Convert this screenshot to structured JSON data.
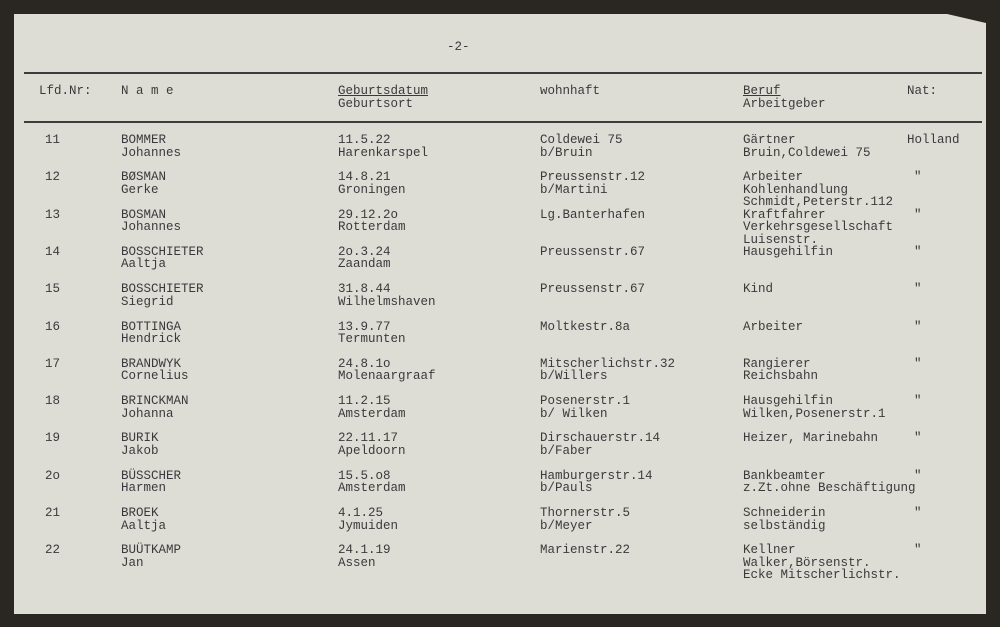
{
  "page_number": "-2-",
  "headers": {
    "nr": "Lfd.Nr:",
    "name": "N a m e",
    "birth_date": "Geburtsdatum",
    "birth_place": "Geburtsort",
    "residence": "wohnhaft",
    "occupation": "Beruf",
    "employer": "Arbeitgeber",
    "nationality": "Nat:"
  },
  "rows": [
    {
      "nr": "11",
      "name": "BOMMER\nJohannes",
      "birth": "11.5.22\nHarenkarspel",
      "residence": "Coldewei 75\nb/Bruin",
      "occupation": "Gärtner\nBruin,Coldewei 75",
      "nat": "Holland"
    },
    {
      "nr": "12",
      "name": "BØSMAN\nGerke",
      "birth": "14.8.21\nGroningen",
      "residence": "Preussenstr.12\nb/Martini",
      "occupation": "Arbeiter\nKohlenhandlung\nSchmidt,Peterstr.112",
      "nat": "\""
    },
    {
      "nr": "13",
      "name": "BOSMAN\nJohannes",
      "birth": "29.12.2o\nRotterdam",
      "residence": "Lg.Banterhafen",
      "occupation": "Kraftfahrer\nVerkehrsgesellschaft\nLuisenstr.",
      "nat": "\""
    },
    {
      "nr": "14",
      "name": "BOSSCHIETER\nAaltja",
      "birth": "2o.3.24\nZaandam",
      "residence": "Preussenstr.67",
      "occupation": "Hausgehilfin",
      "nat": "\""
    },
    {
      "nr": "15",
      "name": "BOSSCHIETER\nSiegrid",
      "birth": "31.8.44\nWilhelmshaven",
      "residence": "Preussenstr.67",
      "occupation": "Kind",
      "nat": "\""
    },
    {
      "nr": "16",
      "name": "BOTTINGA\nHendrick",
      "birth": "13.9.77\nTermunten",
      "residence": "Moltkestr.8a",
      "occupation": "Arbeiter",
      "nat": "\""
    },
    {
      "nr": "17",
      "name": "BRANDWYK\nCornelius",
      "birth": "24.8.1o\nMolenaargraaf",
      "residence": "Mitscherlichstr.32\nb/Willers",
      "occupation": "Rangierer\nReichsbahn",
      "nat": "\""
    },
    {
      "nr": "18",
      "name": "BRINCKMAN\nJohanna",
      "birth": "11.2.15\nAmsterdam",
      "residence": "Posenerstr.1\nb/ Wilken",
      "occupation": "Hausgehilfin\nWilken,Posenerstr.1",
      "nat": "\""
    },
    {
      "nr": "19",
      "name": "BURIK\nJakob",
      "birth": "22.11.17\nApeldoorn",
      "residence": "Dirschauerstr.14\nb/Faber",
      "occupation": "Heizer, Marinebahn",
      "nat": "\""
    },
    {
      "nr": "2o",
      "name": "BÜSSCHER\nHarmen",
      "birth": "15.5.o8\nAmsterdam",
      "residence": "Hamburgerstr.14\nb/Pauls",
      "occupation": "Bankbeamter\nz.Zt.ohne Beschäftigung",
      "nat": "\""
    },
    {
      "nr": "21",
      "name": "BROEK\nAaltja",
      "birth": "4.1.25\nJymuiden",
      "residence": "Thornerstr.5\nb/Meyer",
      "occupation": "Schneiderin\nselbständig",
      "nat": "\""
    },
    {
      "nr": "22",
      "name": "BUÜTKAMP\nJan",
      "birth": "24.1.19\nAssen",
      "residence": "Marienstr.22",
      "occupation": "Kellner\nWalker,Börsenstr.\nEcke Mitscherlichstr.",
      "nat": "\""
    }
  ]
}
